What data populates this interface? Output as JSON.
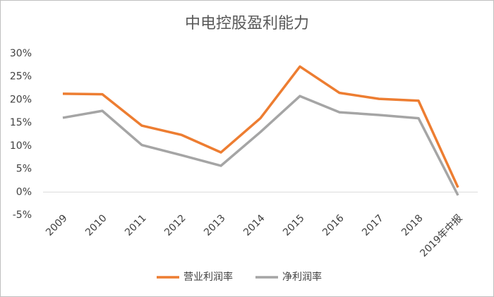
{
  "chart_data": {
    "type": "line",
    "title": "中电控股盈利能力",
    "categories": [
      "2009",
      "2010",
      "2011",
      "2012",
      "2013",
      "2014",
      "2015",
      "2016",
      "2017",
      "2018",
      "2019年中报"
    ],
    "series": [
      {
        "name": "营业利润率",
        "color": "#ed7d31",
        "values": [
          21.3,
          21.2,
          14.4,
          12.4,
          8.6,
          16.0,
          27.2,
          21.5,
          20.2,
          19.8,
          1.0
        ]
      },
      {
        "name": "净利润率",
        "color": "#a5a5a5",
        "values": [
          16.1,
          17.6,
          10.2,
          8.0,
          5.7,
          13.0,
          20.8,
          17.3,
          16.7,
          16.0,
          -0.7
        ]
      }
    ],
    "ylim": [
      -5,
      30
    ],
    "yticks": [
      {
        "value": -5,
        "label": "-5%"
      },
      {
        "value": 0,
        "label": "0%"
      },
      {
        "value": 5,
        "label": "5%"
      },
      {
        "value": 10,
        "label": "10%"
      },
      {
        "value": 15,
        "label": "15%"
      },
      {
        "value": 20,
        "label": "20%"
      },
      {
        "value": 25,
        "label": "25%"
      },
      {
        "value": 30,
        "label": "30%"
      }
    ],
    "legend": "bottom"
  }
}
